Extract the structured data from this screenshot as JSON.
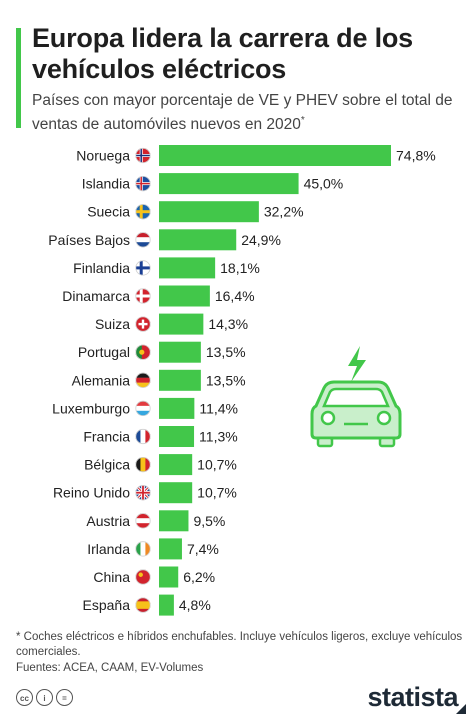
{
  "title": "Europa lidera la carrera de los vehículos eléctricos",
  "subtitle": "Países con mayor porcentaje de VE y PHEV sobre el total de ventas de automóviles nuevos en 2020",
  "subtitle_mark": "*",
  "footnote": "* Coches eléctricos e híbridos enchufables. Incluye vehículos ligeros, excluye vehículos comerciales.",
  "sources": "Fuentes: ACEA, CAAM, EV-Volumes",
  "brand": "statista",
  "license_icons": [
    "cc-icon",
    "by-icon",
    "nd-icon"
  ],
  "illustration_icon": "electric-car-icon",
  "colors": {
    "bar": "#42c74a",
    "accent": "#42c74a",
    "car_fill": "#c9efcb",
    "car_stroke": "#42c74a"
  },
  "chart_data": {
    "type": "bar",
    "orientation": "horizontal",
    "categories": [
      "Noruega",
      "Islandia",
      "Suecia",
      "Países Bajos",
      "Finlandia",
      "Dinamarca",
      "Suiza",
      "Portugal",
      "Alemania",
      "Luxemburgo",
      "Francia",
      "Bélgica",
      "Reino Unido",
      "Austria",
      "Irlanda",
      "China",
      "España"
    ],
    "values": [
      74.8,
      45.0,
      32.2,
      24.9,
      18.1,
      16.4,
      14.3,
      13.5,
      13.5,
      11.4,
      11.3,
      10.7,
      10.7,
      9.5,
      7.4,
      6.2,
      4.8
    ],
    "value_labels": [
      "74,8%",
      "45,0%",
      "32,2%",
      "24,9%",
      "18,1%",
      "16,4%",
      "14,3%",
      "13,5%",
      "13,5%",
      "11,4%",
      "11,3%",
      "10,7%",
      "10,7%",
      "9,5%",
      "7,4%",
      "6,2%",
      "4,8%"
    ],
    "flags": [
      "norway-flag-icon",
      "iceland-flag-icon",
      "sweden-flag-icon",
      "netherlands-flag-icon",
      "finland-flag-icon",
      "denmark-flag-icon",
      "switzerland-flag-icon",
      "portugal-flag-icon",
      "germany-flag-icon",
      "luxembourg-flag-icon",
      "france-flag-icon",
      "belgium-flag-icon",
      "uk-flag-icon",
      "austria-flag-icon",
      "ireland-flag-icon",
      "china-flag-icon",
      "spain-flag-icon"
    ],
    "xlim": [
      0,
      74.8
    ],
    "grid": false,
    "legend": "none"
  }
}
